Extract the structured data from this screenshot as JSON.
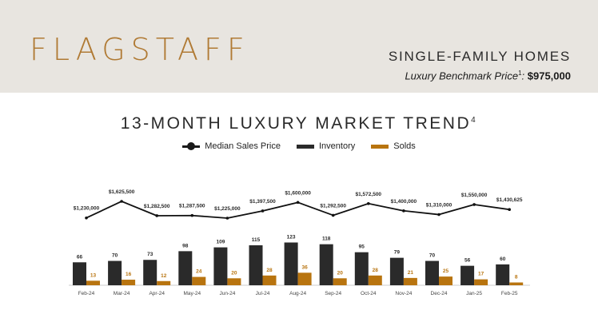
{
  "header": {
    "city": "FLAGSTAFF",
    "property_type": "SINGLE-FAMILY HOMES",
    "benchmark_label": "Luxury Benchmark Price",
    "benchmark_sup": "1",
    "benchmark_value": "$975,000"
  },
  "colors": {
    "inventory": "#2a2a2a",
    "solds": "#b8740f",
    "line": "#111111"
  },
  "chart_data": {
    "type": "bar",
    "title": "13-MONTH LUXURY MARKET TREND",
    "title_sup": "4",
    "categories": [
      "Feb-24",
      "Mar-24",
      "Apr-24",
      "May-24",
      "Jun-24",
      "Jul-24",
      "Aug-24",
      "Sep-24",
      "Oct-24",
      "Nov-24",
      "Dec-24",
      "Jan-25",
      "Feb-25"
    ],
    "series": [
      {
        "name": "Inventory",
        "values": [
          66,
          70,
          73,
          98,
          109,
          115,
          123,
          118,
          95,
          79,
          70,
          56,
          60
        ]
      },
      {
        "name": "Solds",
        "values": [
          13,
          16,
          12,
          24,
          20,
          28,
          36,
          20,
          28,
          21,
          25,
          17,
          8
        ]
      }
    ],
    "line_series": {
      "name": "Median Sales Price",
      "values": [
        1230000,
        1625500,
        1282500,
        1287500,
        1225000,
        1397500,
        1600000,
        1292500,
        1572500,
        1400000,
        1310000,
        1550000,
        1430625
      ],
      "labels": [
        "$1,230,000",
        "$1,625,500",
        "$1,282,500",
        "$1,287,500",
        "$1,225,000",
        "$1,397,500",
        "$1,600,000",
        "$1,292,500",
        "$1,572,500",
        "$1,400,000",
        "$1,310,000",
        "$1,550,000",
        "$1,430,625"
      ]
    },
    "legend_position": "top-center",
    "grid": false
  }
}
